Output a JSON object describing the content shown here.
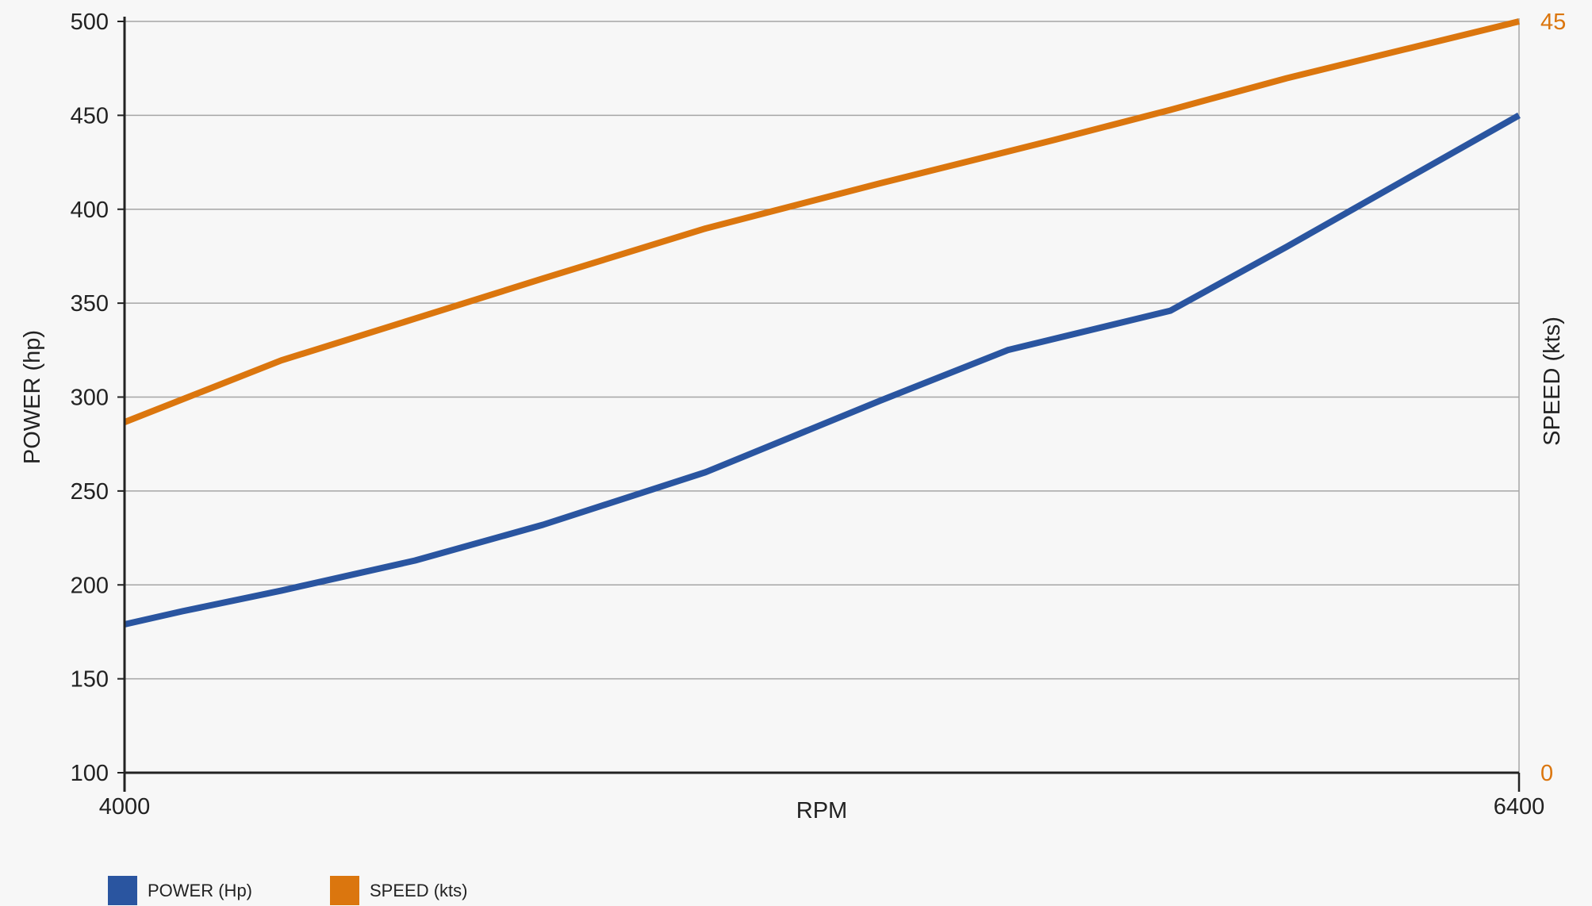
{
  "chart_data": {
    "type": "line",
    "title": "",
    "xlabel": "RPM",
    "ylabel": "POWER (hp)",
    "y2label": "SPEED (kts)",
    "x_ticks": [
      "4000",
      "6400"
    ],
    "y_ticks": [
      "100",
      "150",
      "200",
      "250",
      "300",
      "350",
      "400",
      "450",
      "500"
    ],
    "y2_ticks": [
      "0",
      "45"
    ],
    "xlim": [
      4000,
      6400
    ],
    "ylim": [
      100,
      500
    ],
    "y2lim": [
      0,
      45
    ],
    "grid": true,
    "legend_position": "bottom-left",
    "series": [
      {
        "name": "POWER (Hp)",
        "axis": "left",
        "color": "#2a55a0",
        "x": [
          4000,
          4100,
          4270,
          4500,
          4720,
          5000,
          5300,
          5520,
          5800,
          6000,
          6200,
          6400
        ],
        "values": [
          179,
          186,
          197,
          213,
          232,
          260,
          298,
          325,
          346,
          380,
          415,
          450
        ]
      },
      {
        "name": "SPEED (kts)",
        "axis": "right",
        "color": "#db760e",
        "x": [
          4000,
          4270,
          4500,
          4720,
          5000,
          5300,
          5600,
          5800,
          6000,
          6200,
          6400
        ],
        "values": [
          21,
          24.7,
          27.2,
          29.6,
          32.6,
          35.3,
          37.9,
          39.7,
          41.6,
          43.3,
          45
        ]
      }
    ]
  },
  "legend": {
    "items": [
      {
        "label": "POWER (Hp)",
        "color": "#2a55a0"
      },
      {
        "label": "SPEED (kts)",
        "color": "#db760e"
      }
    ]
  },
  "colors": {
    "axis": "#222222",
    "grid": "#a6a6a6",
    "right_axis": "#db760e",
    "background": "#f7f7f7"
  }
}
